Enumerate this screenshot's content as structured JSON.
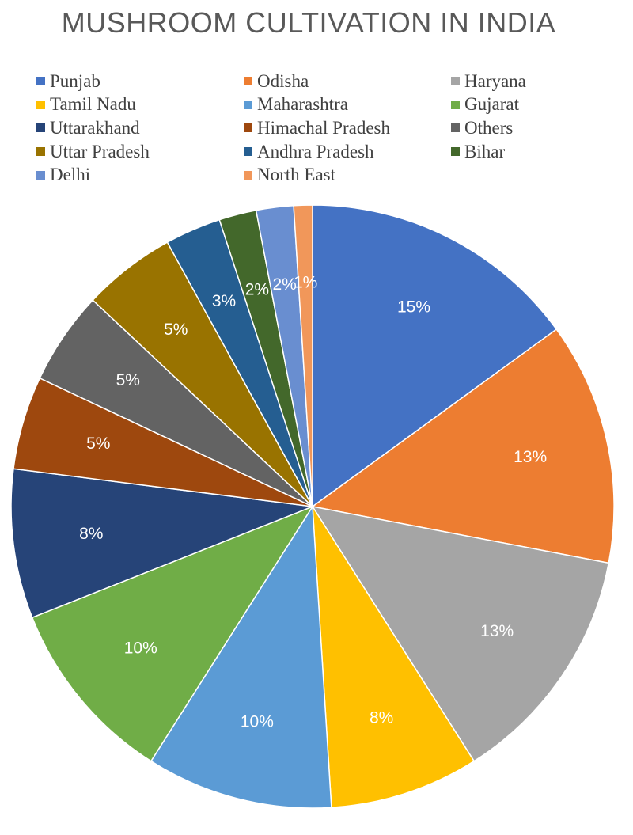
{
  "chart_data": {
    "type": "pie",
    "title": "MUSHROOM CULTIVATION IN INDIA",
    "start_angle_deg": 0,
    "legend_position": "top",
    "slices": [
      {
        "name": "Punjab",
        "value": 15,
        "label": "15%",
        "color": "#4472C4"
      },
      {
        "name": "Odisha",
        "value": 13,
        "label": "13%",
        "color": "#ED7D31"
      },
      {
        "name": "Haryana",
        "value": 13,
        "label": "13%",
        "color": "#A5A5A5"
      },
      {
        "name": "Tamil Nadu",
        "value": 8,
        "label": "8%",
        "color": "#FFC000"
      },
      {
        "name": "Maharashtra",
        "value": 10,
        "label": "10%",
        "color": "#5B9BD5"
      },
      {
        "name": "Gujarat",
        "value": 10,
        "label": "10%",
        "color": "#70AD47"
      },
      {
        "name": "Uttarakhand",
        "value": 8,
        "label": "8%",
        "color": "#264478"
      },
      {
        "name": "Himachal Pradesh",
        "value": 5,
        "label": "5%",
        "color": "#9E480E"
      },
      {
        "name": "Others",
        "value": 5,
        "label": "5%",
        "color": "#636363"
      },
      {
        "name": "Uttar Pradesh",
        "value": 5,
        "label": "5%",
        "color": "#997300"
      },
      {
        "name": "Andhra Pradesh",
        "value": 3,
        "label": "3%",
        "color": "#255E91"
      },
      {
        "name": "Bihar",
        "value": 2,
        "label": "2%",
        "color": "#43682B"
      },
      {
        "name": "Delhi",
        "value": 2,
        "label": "2%",
        "color": "#698ED0"
      },
      {
        "name": "North East",
        "value": 1,
        "label": "1%",
        "color": "#F1975A"
      }
    ]
  }
}
